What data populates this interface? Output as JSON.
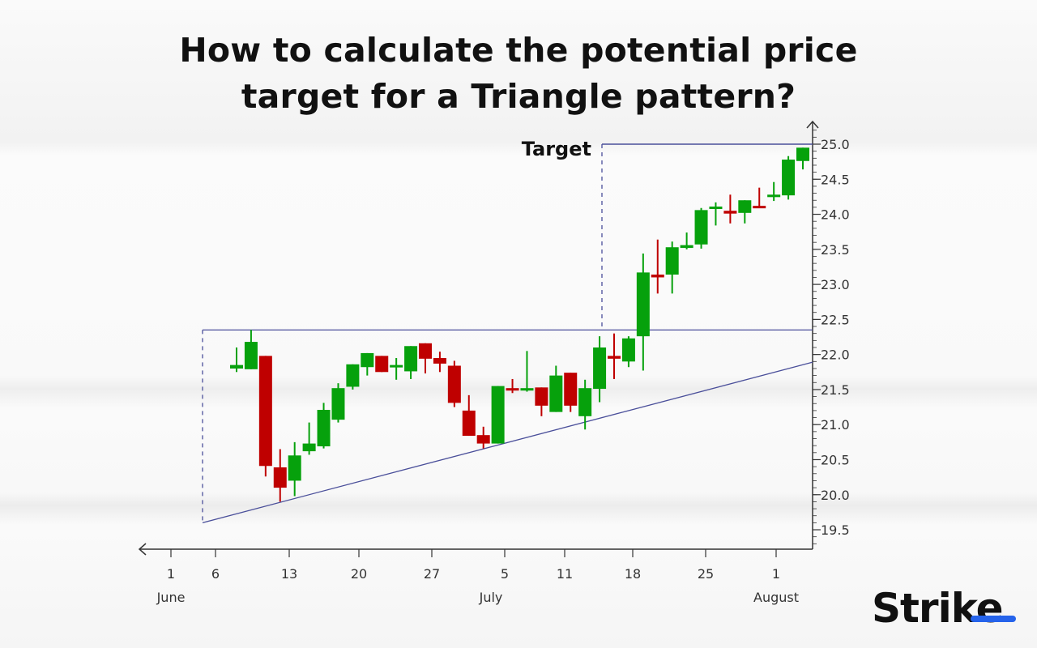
{
  "title_lines": [
    "How to calculate the potential price",
    "target for a Triangle pattern?"
  ],
  "logo_text": "Strike",
  "colors": {
    "up": "#06a10c",
    "down": "#bf0000",
    "line": "#4a4f9a",
    "axis": "#333333",
    "logo_accent": "#2563eb"
  },
  "chart_data": {
    "type": "candlestick",
    "title": "How to calculate the potential price target for a Triangle pattern?",
    "ylim": [
      19.5,
      25.0
    ],
    "y_ticks": [
      "19.5",
      "20.0",
      "20.5",
      "21.0",
      "21.5",
      "22.0",
      "22.5",
      "23.0",
      "23.5",
      "24.0",
      "24.5",
      "25.0"
    ],
    "x_ticks": [
      "1",
      "6",
      "13",
      "20",
      "27",
      "5",
      "11",
      "18",
      "25",
      "1"
    ],
    "month_labels": [
      "June",
      "July",
      "August"
    ],
    "annotations": [
      {
        "text": "Target",
        "price": 25.0
      }
    ],
    "lines": {
      "resistance": 22.35,
      "target": 25.0,
      "support_start": 19.6,
      "support_end": 21.89
    },
    "candles": [
      {
        "o": 21.8,
        "h": 22.1,
        "l": 21.75,
        "c": 21.85
      },
      {
        "o": 21.79,
        "h": 22.35,
        "l": 21.79,
        "c": 22.18
      },
      {
        "o": 21.98,
        "h": 21.98,
        "l": 20.26,
        "c": 20.41
      },
      {
        "o": 20.39,
        "h": 20.65,
        "l": 19.9,
        "c": 20.1
      },
      {
        "o": 20.2,
        "h": 20.75,
        "l": 19.98,
        "c": 20.56
      },
      {
        "o": 20.62,
        "h": 21.03,
        "l": 20.57,
        "c": 20.73
      },
      {
        "o": 20.69,
        "h": 21.31,
        "l": 20.66,
        "c": 21.21
      },
      {
        "o": 21.07,
        "h": 21.59,
        "l": 21.03,
        "c": 21.52
      },
      {
        "o": 21.54,
        "h": 21.86,
        "l": 21.5,
        "c": 21.86
      },
      {
        "o": 21.82,
        "h": 22.02,
        "l": 21.7,
        "c": 22.02
      },
      {
        "o": 21.98,
        "h": 21.98,
        "l": 21.75,
        "c": 21.75
      },
      {
        "o": 21.82,
        "h": 21.95,
        "l": 21.64,
        "c": 21.85
      },
      {
        "o": 21.76,
        "h": 22.12,
        "l": 21.65,
        "c": 22.12
      },
      {
        "o": 22.16,
        "h": 22.16,
        "l": 21.73,
        "c": 21.94
      },
      {
        "o": 21.95,
        "h": 22.04,
        "l": 21.75,
        "c": 21.87
      },
      {
        "o": 21.84,
        "h": 21.91,
        "l": 21.25,
        "c": 21.31
      },
      {
        "o": 21.2,
        "h": 21.42,
        "l": 20.84,
        "c": 20.84
      },
      {
        "o": 20.85,
        "h": 20.97,
        "l": 20.66,
        "c": 20.73
      },
      {
        "o": 20.73,
        "h": 21.55,
        "l": 20.73,
        "c": 21.55
      },
      {
        "o": 21.52,
        "h": 21.65,
        "l": 21.45,
        "c": 21.49
      },
      {
        "o": 21.49,
        "h": 22.05,
        "l": 21.47,
        "c": 21.52
      },
      {
        "o": 21.53,
        "h": 21.53,
        "l": 21.12,
        "c": 21.27
      },
      {
        "o": 21.18,
        "h": 21.84,
        "l": 21.18,
        "c": 21.7
      },
      {
        "o": 21.74,
        "h": 21.74,
        "l": 21.18,
        "c": 21.27
      },
      {
        "o": 21.12,
        "h": 21.64,
        "l": 20.93,
        "c": 21.52
      },
      {
        "o": 21.51,
        "h": 22.26,
        "l": 21.32,
        "c": 22.1
      },
      {
        "o": 21.98,
        "h": 22.3,
        "l": 21.65,
        "c": 21.94
      },
      {
        "o": 21.9,
        "h": 22.26,
        "l": 21.82,
        "c": 22.23
      },
      {
        "o": 22.26,
        "h": 23.44,
        "l": 21.77,
        "c": 23.17
      },
      {
        "o": 23.14,
        "h": 23.64,
        "l": 22.87,
        "c": 23.1
      },
      {
        "o": 23.14,
        "h": 23.61,
        "l": 22.87,
        "c": 23.53
      },
      {
        "o": 23.52,
        "h": 23.74,
        "l": 23.5,
        "c": 23.56
      },
      {
        "o": 23.57,
        "h": 24.09,
        "l": 23.51,
        "c": 24.06
      },
      {
        "o": 24.08,
        "h": 24.17,
        "l": 23.84,
        "c": 24.11
      },
      {
        "o": 24.05,
        "h": 24.28,
        "l": 23.87,
        "c": 24.01
      },
      {
        "o": 24.02,
        "h": 24.2,
        "l": 23.87,
        "c": 24.2
      },
      {
        "o": 24.12,
        "h": 24.38,
        "l": 24.09,
        "c": 24.09
      },
      {
        "o": 24.25,
        "h": 24.46,
        "l": 24.19,
        "c": 24.28
      },
      {
        "o": 24.27,
        "h": 24.83,
        "l": 24.21,
        "c": 24.78
      },
      {
        "o": 24.76,
        "h": 24.95,
        "l": 24.64,
        "c": 24.95
      }
    ]
  }
}
